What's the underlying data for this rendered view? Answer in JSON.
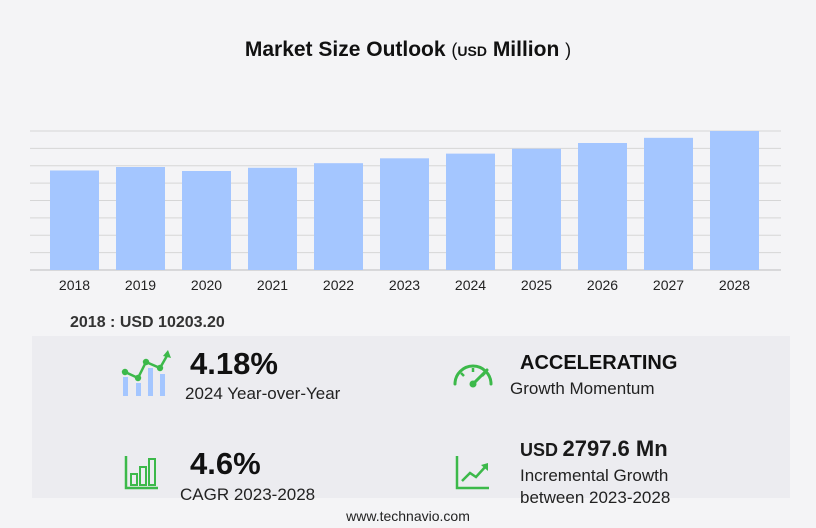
{
  "header": {
    "title_main": "Market Size Outlook",
    "paren_open": "(",
    "unit_small": "USD",
    "unit_large": "Million",
    "paren_close": ")"
  },
  "chart_data": {
    "type": "bar",
    "categories": [
      "2018",
      "2019",
      "2020",
      "2021",
      "2022",
      "2023",
      "2024",
      "2025",
      "2026",
      "2027",
      "2028"
    ],
    "values": [
      10203.2,
      10560,
      10150,
      10480,
      10950,
      11450,
      11930,
      12430,
      13020,
      13550,
      14250
    ],
    "ylim": [
      0,
      14250
    ],
    "grid": true,
    "bar_color": "#a4c6ff"
  },
  "base": {
    "label": "2018 : USD  10203.20"
  },
  "stats": {
    "yoy_value": "4.18%",
    "yoy_label": "2024 Year-over-Year",
    "momentum_value": "ACCELERATING",
    "momentum_label": "Growth Momentum",
    "cagr_value": "4.6%",
    "cagr_label": "CAGR 2023-2028",
    "incr_unit": "USD",
    "incr_value": "2797.6 Mn",
    "incr_label_1": "Incremental Growth",
    "incr_label_2": "between 2023-2028"
  },
  "icons": {
    "yoy": "trend-bars-icon",
    "momentum": "speedometer-icon",
    "cagr": "bar-chart-icon",
    "incr": "line-growth-icon",
    "accent": "#3cb94a"
  },
  "footer": {
    "url": "www.technavio.com"
  }
}
